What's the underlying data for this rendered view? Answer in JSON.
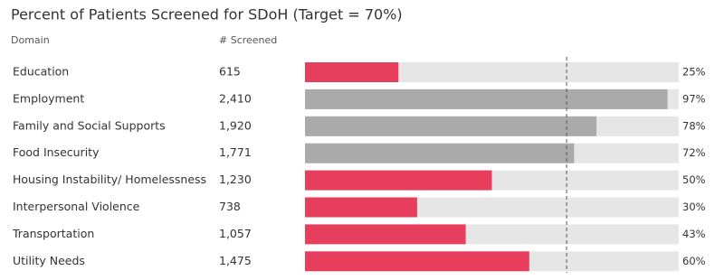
{
  "chart_data": {
    "type": "bar",
    "orientation": "horizontal",
    "title": "Percent of Patients Screened for SDoH (Target = 70%)",
    "column_headers": [
      "Domain",
      "# Screened"
    ],
    "categories": [
      "Education",
      "Employment",
      "Family and Social Supports",
      "Food Insecurity",
      "Housing Instability/ Homelessness",
      "Interpersonal Violence",
      "Transportation",
      "Utility Needs"
    ],
    "screened": [
      615,
      {
        "value": 2410,
        "label": "2,410"
      },
      {
        "value": 1920,
        "label": "1,920"
      },
      {
        "value": 1771,
        "label": "1,771"
      },
      {
        "value": 1230,
        "label": "1,230"
      },
      738,
      {
        "value": 1057,
        "label": "1,057"
      },
      {
        "value": 1475,
        "label": "1,475"
      }
    ],
    "values": [
      25,
      97,
      78,
      72,
      50,
      30,
      43,
      60
    ],
    "value_labels": [
      "25%",
      "97%",
      "78%",
      "72%",
      "50%",
      "30%",
      "43%",
      "60%"
    ],
    "colors": [
      "#e63e5c",
      "#aaaaaa",
      "#aaaaaa",
      "#aaaaaa",
      "#e63e5c",
      "#e63e5c",
      "#e63e5c",
      "#e63e5c"
    ],
    "track_color": "#e6e6e6",
    "target": 70,
    "xlim": [
      0,
      100
    ]
  }
}
